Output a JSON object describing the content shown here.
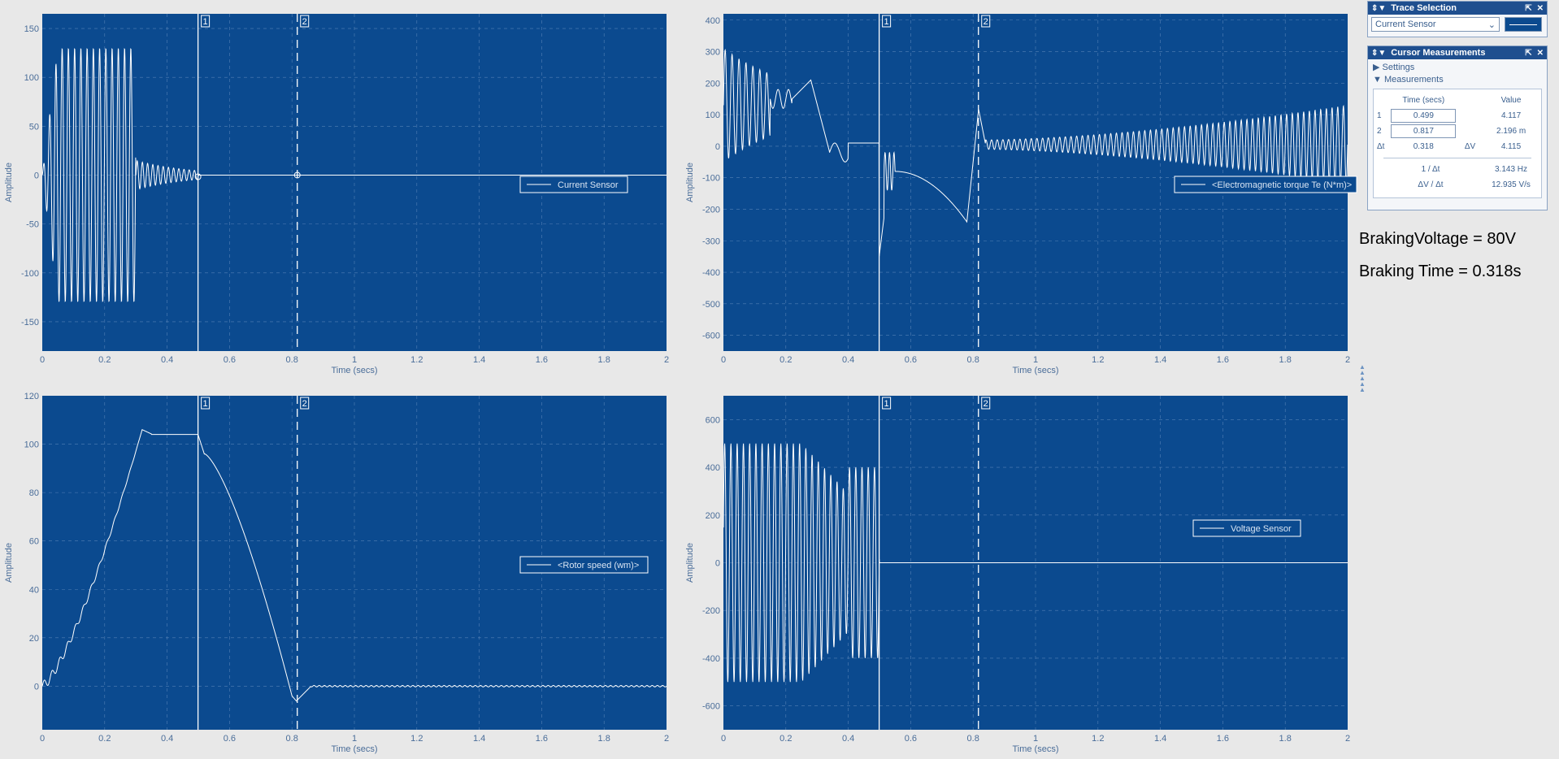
{
  "plots": [
    {
      "name": "current-sensor-plot",
      "ylabel": "Amplitude",
      "xlabel": "Time (secs)",
      "legend": "Current Sensor",
      "xticks": [
        "0",
        "0.2",
        "0.4",
        "0.6",
        "0.8",
        "1",
        "1.2",
        "1.4",
        "1.6",
        "1.8",
        "2"
      ],
      "yticks": [
        "150",
        "100",
        "50",
        "0",
        "-50",
        "-100",
        "-150"
      ],
      "cursors": [
        "1",
        "2"
      ]
    },
    {
      "name": "electromagnetic-torque-plot",
      "ylabel": "Amplitude",
      "xlabel": "Time (secs)",
      "legend": "<Electromagnetic torque Te (N*m)>",
      "xticks": [
        "0",
        "0.2",
        "0.4",
        "0.6",
        "0.8",
        "1",
        "1.2",
        "1.4",
        "1.6",
        "1.8",
        "2"
      ],
      "yticks": [
        "400",
        "300",
        "200",
        "100",
        "0",
        "-100",
        "-200",
        "-300",
        "-400",
        "-500",
        "-600"
      ],
      "cursors": [
        "1",
        "2"
      ]
    },
    {
      "name": "rotor-speed-plot",
      "ylabel": "Amplitude",
      "xlabel": "Time (secs)",
      "legend": "<Rotor speed (wm)>",
      "xticks": [
        "0",
        "0.2",
        "0.4",
        "0.6",
        "0.8",
        "1",
        "1.2",
        "1.4",
        "1.6",
        "1.8",
        "2"
      ],
      "yticks": [
        "120",
        "100",
        "80",
        "60",
        "40",
        "20",
        "0"
      ],
      "cursors": [
        "1",
        "2"
      ]
    },
    {
      "name": "voltage-sensor-plot",
      "ylabel": "Amplitude",
      "xlabel": "Time (secs)",
      "legend": "Voltage Sensor",
      "xticks": [
        "0",
        "0.2",
        "0.4",
        "0.6",
        "0.8",
        "1",
        "1.2",
        "1.4",
        "1.6",
        "1.8",
        "2"
      ],
      "yticks": [
        "600",
        "400",
        "200",
        "0",
        "-200",
        "-400",
        "-600"
      ],
      "cursors": [
        "1",
        "2"
      ]
    }
  ],
  "trace_selection": {
    "title": "Trace Selection",
    "selected": "Current Sensor"
  },
  "cursor_measurements": {
    "title": "Cursor Measurements",
    "settings_label": "Settings",
    "measurements_label": "Measurements",
    "col_time": "Time (secs)",
    "col_value": "Value",
    "row1": {
      "index": "1",
      "time": "0.499",
      "value": "4.117"
    },
    "row2": {
      "index": "2",
      "time": "0.817",
      "value": "2.196 m"
    },
    "delta": {
      "dt_label": "Δt",
      "dt": "0.318",
      "dv_label": "ΔV",
      "dv": "4.115"
    },
    "freq_label": "1 / Δt",
    "freq": "3.143 Hz",
    "slope_label": "ΔV / Δt",
    "slope": "12.935 V/s"
  },
  "annotations": {
    "braking_voltage": "BrakingVoltage = 80V",
    "braking_time": "Braking Time = 0.318s"
  },
  "colors": {
    "plot_bg": "#0b4a8f",
    "trace": "#ffffff",
    "grid": "#6c93c2",
    "page_bg": "#e8e8e8"
  },
  "chart_data": [
    {
      "type": "line",
      "legend": "Current Sensor",
      "xlabel": "Time (secs)",
      "ylabel": "Amplitude",
      "xlim": [
        0,
        2
      ],
      "ylim": [
        -180,
        165
      ],
      "grid": true,
      "cursor_times": [
        0.499,
        0.817
      ],
      "series": [
        {
          "name": "Current Sensor",
          "x": [
            0,
            0.05,
            0.1,
            0.15,
            0.2,
            0.25,
            0.3,
            0.35,
            0.4,
            0.45,
            0.5,
            0.6,
            0.8,
            1.0,
            1.5,
            2.0
          ],
          "values": [
            0,
            120,
            -130,
            130,
            -140,
            110,
            20,
            10,
            5,
            4,
            4,
            0,
            0,
            0,
            0,
            0
          ]
        }
      ]
    },
    {
      "type": "line",
      "legend": "<Electromagnetic torque Te (N*m)>",
      "xlabel": "Time (secs)",
      "ylabel": "Amplitude",
      "xlim": [
        0,
        2
      ],
      "ylim": [
        -650,
        420
      ],
      "grid": true,
      "cursor_times": [
        0.499,
        0.817
      ],
      "series": [
        {
          "name": "<Electromagnetic torque Te (N*m)>",
          "x": [
            0,
            0.05,
            0.1,
            0.15,
            0.2,
            0.27,
            0.32,
            0.35,
            0.4,
            0.5,
            0.52,
            0.55,
            0.6,
            0.7,
            0.78,
            0.8,
            0.82,
            0.85,
            0.9,
            1.0,
            1.2,
            1.4,
            1.6,
            1.8,
            2.0
          ],
          "values": [
            0,
            320,
            -120,
            200,
            160,
            210,
            30,
            -20,
            10,
            10,
            -350,
            -80,
            -90,
            -150,
            -240,
            -60,
            130,
            0,
            10,
            20,
            30,
            40,
            60,
            80,
            100
          ]
        }
      ]
    },
    {
      "type": "line",
      "legend": "<Rotor speed (wm)>",
      "xlabel": "Time (secs)",
      "ylabel": "Amplitude",
      "xlim": [
        0,
        2
      ],
      "ylim": [
        -18,
        120
      ],
      "grid": true,
      "cursor_times": [
        0.499,
        0.817
      ],
      "series": [
        {
          "name": "<Rotor speed (wm)>",
          "x": [
            0,
            0.05,
            0.1,
            0.15,
            0.2,
            0.25,
            0.3,
            0.33,
            0.35,
            0.4,
            0.45,
            0.5,
            0.52,
            0.6,
            0.7,
            0.78,
            0.81,
            0.83,
            0.9,
            1.0,
            1.5,
            2.0
          ],
          "values": [
            0,
            12,
            25,
            40,
            58,
            80,
            100,
            106,
            104,
            104,
            104,
            104,
            96,
            85,
            55,
            15,
            -6,
            -1,
            0,
            0,
            0,
            0
          ]
        }
      ]
    },
    {
      "type": "line",
      "legend": "Voltage Sensor",
      "xlabel": "Time (secs)",
      "ylabel": "Amplitude",
      "xlim": [
        0,
        2
      ],
      "ylim": [
        -700,
        700
      ],
      "grid": true,
      "cursor_times": [
        0.499,
        0.817
      ],
      "series": [
        {
          "name": "Voltage Sensor",
          "x": [
            0,
            0.05,
            0.1,
            0.15,
            0.2,
            0.25,
            0.3,
            0.35,
            0.4,
            0.45,
            0.5,
            0.6,
            0.8,
            1.0,
            1.5,
            2.0
          ],
          "values": [
            0,
            480,
            -500,
            520,
            -540,
            500,
            -400,
            380,
            -300,
            400,
            0,
            0,
            0,
            0,
            0,
            0
          ]
        }
      ]
    }
  ]
}
